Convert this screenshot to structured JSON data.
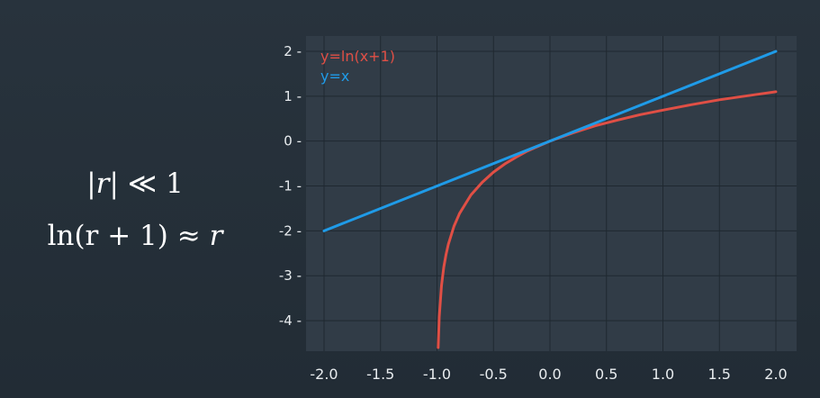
{
  "slide": {
    "condition": {
      "abs": "|r|",
      "op": "≪",
      "rhs": "1"
    },
    "approximation": {
      "lhs": "ln(r + 1)",
      "op": "≈",
      "rhs": "r"
    }
  },
  "chart_data": {
    "type": "line",
    "title": "",
    "xlabel": "",
    "ylabel": "",
    "xlim": [
      -2.0,
      2.0
    ],
    "ylim": [
      -4.6,
      2.1
    ],
    "grid": true,
    "legend_position": "top-left",
    "xticks": [
      -2.0,
      -1.5,
      -1.0,
      -0.5,
      0.0,
      0.5,
      1.0,
      1.5,
      2.0
    ],
    "xtick_labels": [
      "-2.0",
      "-1.5",
      "-1.0",
      "-0.5",
      "0.0",
      "0.5",
      "1.0",
      "1.5",
      "2.0"
    ],
    "yticks": [
      2,
      1,
      0,
      -1,
      -2,
      -3,
      -4
    ],
    "ytick_labels": [
      "2",
      "1",
      "0",
      "-1",
      "-2",
      "-3",
      "-4"
    ],
    "series": [
      {
        "name": "y=ln(x+1)",
        "color": "#e04f45",
        "x": [
          -0.99,
          -0.98,
          -0.96,
          -0.94,
          -0.92,
          -0.9,
          -0.85,
          -0.8,
          -0.7,
          -0.6,
          -0.5,
          -0.4,
          -0.3,
          -0.2,
          -0.1,
          0.0,
          0.2,
          0.4,
          0.6,
          0.8,
          1.0,
          1.25,
          1.5,
          1.75,
          2.0
        ],
        "y": [
          -4.6,
          -3.91,
          -3.22,
          -2.81,
          -2.53,
          -2.3,
          -1.9,
          -1.61,
          -1.2,
          -0.92,
          -0.69,
          -0.51,
          -0.36,
          -0.22,
          -0.11,
          0.0,
          0.18,
          0.34,
          0.47,
          0.59,
          0.69,
          0.81,
          0.92,
          1.01,
          1.1
        ]
      },
      {
        "name": "y=x",
        "color": "#1f9be8",
        "x": [
          -2.0,
          2.0
        ],
        "y": [
          -2.0,
          2.0
        ]
      }
    ]
  }
}
